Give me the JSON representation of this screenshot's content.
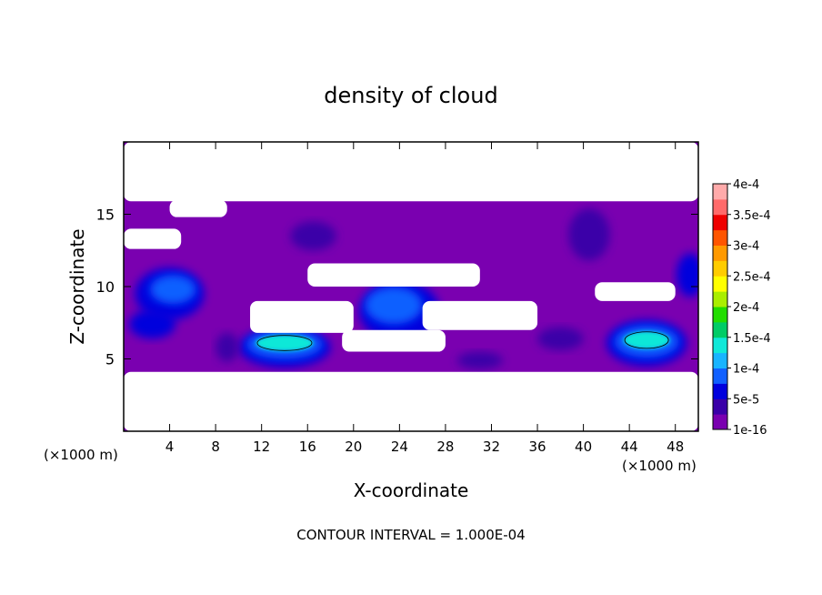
{
  "chart_data": {
    "type": "heatmap",
    "title": "density of cloud",
    "xlabel": "X-coordinate",
    "ylabel": "Z-coordinate",
    "x_unit_left": "(×1000 m)",
    "x_unit_right": "(×1000 m)",
    "xlim": [
      0,
      50
    ],
    "ylim": [
      0,
      20
    ],
    "x_ticks": [
      4,
      8,
      12,
      16,
      20,
      24,
      28,
      32,
      36,
      40,
      44,
      48
    ],
    "y_ticks": [
      5,
      10,
      15
    ],
    "footer": "CONTOUR INTERVAL = 1.000E-04",
    "colorbar": {
      "labels": [
        "1e-16",
        "5e-5",
        "1e-4",
        "1.5e-4",
        "2e-4",
        "2.5e-4",
        "3e-4",
        "3.5e-4",
        "4e-4"
      ],
      "values": [
        1e-16,
        5e-05,
        0.0001,
        0.00015,
        0.0002,
        0.00025,
        0.0003,
        0.00035,
        0.0004
      ],
      "colors": [
        "#7a00b0",
        "#3a00a8",
        "#0000dd",
        "#1060ff",
        "#18b4ff",
        "#10e8d8",
        "#00cc66",
        "#22dd00",
        "#aaee00",
        "#ffff00",
        "#ffcc00",
        "#ff9900",
        "#ff5500",
        "#ee0000",
        "#ff6a6a",
        "#ffaaaa"
      ]
    },
    "background_color": "#7a00b0",
    "clear_regions": [
      {
        "x": [
          0,
          50
        ],
        "z": [
          15.9,
          20
        ]
      },
      {
        "x": [
          0,
          50
        ],
        "z": [
          0,
          4.1
        ]
      },
      {
        "x": [
          0,
          5
        ],
        "z": [
          12.6,
          14
        ]
      },
      {
        "x": [
          4,
          9
        ],
        "z": [
          14.8,
          16
        ]
      },
      {
        "x": [
          11,
          20
        ],
        "z": [
          6.8,
          9
        ]
      },
      {
        "x": [
          16,
          31
        ],
        "z": [
          10,
          11.6
        ]
      },
      {
        "x": [
          19,
          28
        ],
        "z": [
          5.5,
          7
        ]
      },
      {
        "x": [
          26,
          36
        ],
        "z": [
          7,
          9
        ]
      },
      {
        "x": [
          41,
          48
        ],
        "z": [
          9,
          10.3
        ]
      }
    ],
    "features": [
      {
        "x": 4,
        "z": 9.5,
        "rx": 3,
        "rz": 1.8,
        "level": 5e-05
      },
      {
        "x": 4.3,
        "z": 9.8,
        "rx": 2,
        "rz": 1,
        "level": 8e-05
      },
      {
        "x": 2.5,
        "z": 7.4,
        "rx": 2,
        "rz": 1,
        "level": 6e-05
      },
      {
        "x": 14,
        "z": 5.8,
        "rx": 4,
        "rz": 1.4,
        "level": 5e-05
      },
      {
        "x": 14,
        "z": 6,
        "rx": 3.3,
        "rz": 1,
        "level": 9e-05
      },
      {
        "x": 14,
        "z": 6.1,
        "rx": 2.5,
        "rz": 0.55,
        "level": 0.00013
      },
      {
        "x": 24,
        "z": 8.3,
        "rx": 3.5,
        "rz": 2.1,
        "level": 5e-05
      },
      {
        "x": 23.5,
        "z": 8.7,
        "rx": 2.5,
        "rz": 1.3,
        "level": 8e-05
      },
      {
        "x": 16.5,
        "z": 13.5,
        "rx": 2,
        "rz": 1,
        "level": 4e-05
      },
      {
        "x": 9,
        "z": 5.8,
        "rx": 1,
        "rz": 1,
        "level": 4e-05
      },
      {
        "x": 31,
        "z": 4.9,
        "rx": 2,
        "rz": 0.6,
        "level": 4e-05
      },
      {
        "x": 45.5,
        "z": 6.1,
        "rx": 3.5,
        "rz": 1.6,
        "level": 5e-05
      },
      {
        "x": 45.5,
        "z": 6.2,
        "rx": 2.8,
        "rz": 1.1,
        "level": 9e-05
      },
      {
        "x": 45.5,
        "z": 6.3,
        "rx": 2,
        "rz": 0.6,
        "level": 0.00013
      },
      {
        "x": 40.5,
        "z": 13.6,
        "rx": 1.8,
        "rz": 1.8,
        "level": 4e-05
      },
      {
        "x": 49.3,
        "z": 10.8,
        "rx": 1.2,
        "rz": 1.5,
        "level": 5e-05
      },
      {
        "x": 38,
        "z": 6.4,
        "rx": 2,
        "rz": 0.8,
        "level": 4e-05
      }
    ]
  }
}
